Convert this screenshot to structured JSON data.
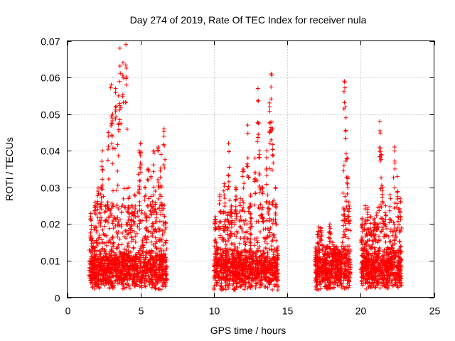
{
  "chart_data": {
    "type": "scatter",
    "title": "Day 274 of 2019, Rate Of TEC Index for receiver nula",
    "xlabel": "GPS time / hours",
    "ylabel": "ROTI / TECUs",
    "xlim": [
      0,
      25
    ],
    "ylim": [
      0,
      0.07
    ],
    "x_ticks": [
      0,
      5,
      10,
      15,
      20,
      25
    ],
    "x_tick_labels": [
      "0",
      "5",
      "10",
      "15",
      "20",
      "25"
    ],
    "y_ticks": [
      0,
      0.01,
      0.02,
      0.03,
      0.04,
      0.05,
      0.06,
      0.07
    ],
    "y_tick_labels": [
      "0",
      "0.01",
      "0.02",
      "0.03",
      "0.04",
      "0.05",
      "0.06",
      "0.07"
    ],
    "grid": true,
    "marker": "+",
    "marker_color": "#ff0000",
    "series": [
      {
        "name": "ROTI",
        "clusters": [
          {
            "t_start": 1.5,
            "t_end": 6.8,
            "peaks": [
              [
                1.6,
                0.022
              ],
              [
                1.9,
                0.025
              ],
              [
                2.1,
                0.029
              ],
              [
                2.3,
                0.03
              ],
              [
                2.4,
                0.04
              ],
              [
                2.6,
                0.025
              ],
              [
                2.8,
                0.045
              ],
              [
                3.0,
                0.058
              ],
              [
                3.1,
                0.05
              ],
              [
                3.3,
                0.057
              ],
              [
                3.5,
                0.055
              ],
              [
                3.6,
                0.068
              ],
              [
                3.8,
                0.064
              ],
              [
                4.0,
                0.069
              ],
              [
                4.2,
                0.03
              ],
              [
                4.4,
                0.025
              ],
              [
                4.6,
                0.028
              ],
              [
                4.9,
                0.04
              ],
              [
                5.0,
                0.042
              ],
              [
                5.3,
                0.03
              ],
              [
                5.5,
                0.035
              ],
              [
                5.7,
                0.033
              ],
              [
                5.9,
                0.04
              ],
              [
                6.0,
                0.029
              ],
              [
                6.2,
                0.041
              ],
              [
                6.4,
                0.039
              ],
              [
                6.6,
                0.046
              ]
            ]
          },
          {
            "t_start": 10.0,
            "t_end": 14.4,
            "peaks": [
              [
                10.1,
                0.022
              ],
              [
                10.4,
                0.028
              ],
              [
                10.7,
                0.031
              ],
              [
                11.0,
                0.042
              ],
              [
                11.2,
                0.025
              ],
              [
                11.5,
                0.03
              ],
              [
                11.8,
                0.027
              ],
              [
                12.0,
                0.035
              ],
              [
                12.3,
                0.047
              ],
              [
                12.5,
                0.028
              ],
              [
                12.8,
                0.038
              ],
              [
                13.0,
                0.057
              ],
              [
                13.1,
                0.04
              ],
              [
                13.3,
                0.03
              ],
              [
                13.6,
                0.04
              ],
              [
                13.8,
                0.052
              ],
              [
                13.9,
                0.061
              ],
              [
                14.0,
                0.046
              ],
              [
                14.2,
                0.03
              ]
            ]
          },
          {
            "t_start": 16.9,
            "t_end": 19.3,
            "peaks": [
              [
                17.1,
                0.018
              ],
              [
                17.3,
                0.019
              ],
              [
                17.6,
                0.012
              ],
              [
                17.9,
                0.02
              ],
              [
                18.1,
                0.015
              ],
              [
                18.4,
                0.012
              ],
              [
                18.9,
                0.059
              ],
              [
                19.0,
                0.049
              ],
              [
                19.1,
                0.038
              ],
              [
                19.2,
                0.026
              ]
            ]
          },
          {
            "t_start": 20.0,
            "t_end": 22.8,
            "peaks": [
              [
                20.1,
                0.02
              ],
              [
                20.3,
                0.025
              ],
              [
                20.5,
                0.024
              ],
              [
                20.7,
                0.022
              ],
              [
                20.9,
                0.02
              ],
              [
                21.1,
                0.023
              ],
              [
                21.3,
                0.048
              ],
              [
                21.4,
                0.039
              ],
              [
                21.5,
                0.03
              ],
              [
                21.7,
                0.025
              ],
              [
                22.0,
                0.028
              ],
              [
                22.3,
                0.041
              ],
              [
                22.5,
                0.033
              ],
              [
                22.7,
                0.027
              ]
            ]
          }
        ],
        "baseline_min": 0.002,
        "baseline_typical": 0.007
      }
    ]
  }
}
